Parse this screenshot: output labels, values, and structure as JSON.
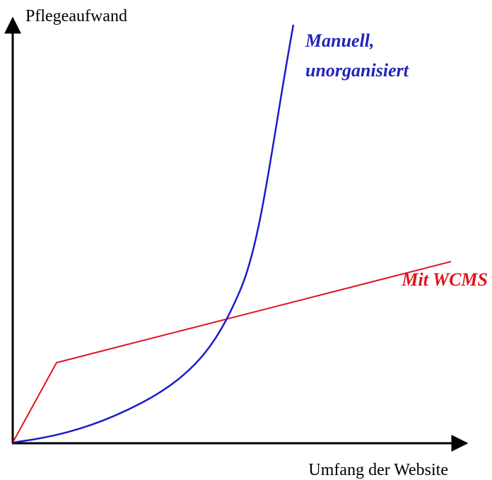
{
  "axes": {
    "y_label": "Pflegeaufwand",
    "x_label": "Umfang der Website"
  },
  "curves": [
    {
      "label_lines": [
        "Manuell,",
        "unorganisiert"
      ]
    },
    {
      "label_lines": [
        "Mit WCMS"
      ]
    }
  ]
}
